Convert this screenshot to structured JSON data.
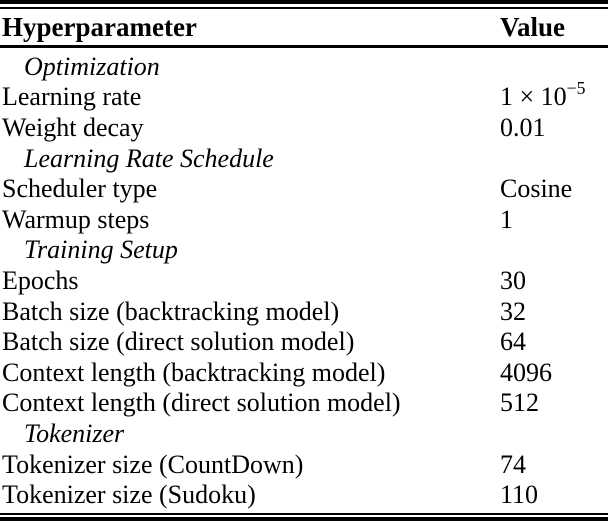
{
  "table": {
    "columns": {
      "param": "Hyperparameter",
      "value": "Value"
    },
    "rows": [
      {
        "type": "section",
        "label": "Optimization"
      },
      {
        "type": "param",
        "label": "Learning rate",
        "value": "1 × 10",
        "value_sup": "−5"
      },
      {
        "type": "param",
        "label": "Weight decay",
        "value": "0.01"
      },
      {
        "type": "section",
        "label": "Learning Rate Schedule"
      },
      {
        "type": "param",
        "label": "Scheduler type",
        "value": "Cosine"
      },
      {
        "type": "param",
        "label": "Warmup steps",
        "value": "1"
      },
      {
        "type": "section",
        "label": "Training Setup"
      },
      {
        "type": "param",
        "label": "Epochs",
        "value": "30"
      },
      {
        "type": "param",
        "label": "Batch size (backtracking model)",
        "value": "32"
      },
      {
        "type": "param",
        "label": "Batch size (direct solution model)",
        "value": "64"
      },
      {
        "type": "param",
        "label": "Context length (backtracking model)",
        "value": "4096"
      },
      {
        "type": "param",
        "label": "Context length (direct solution model)",
        "value": "512"
      },
      {
        "type": "section",
        "label": "Tokenizer"
      },
      {
        "type": "param",
        "label": "Tokenizer size (CountDown)",
        "value": "74"
      },
      {
        "type": "param",
        "label": "Tokenizer size (Sudoku)",
        "value": "110"
      }
    ],
    "colors": {
      "text": "#000000",
      "background": "#ffffff",
      "rule": "#000000"
    }
  }
}
